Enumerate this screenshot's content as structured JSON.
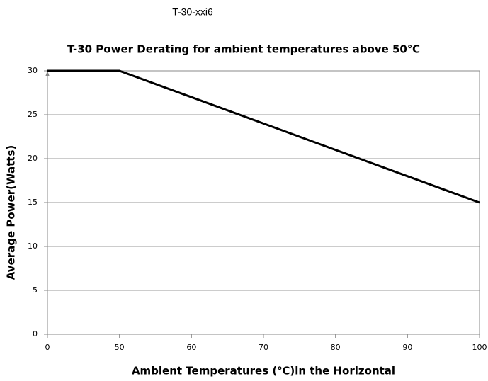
{
  "header": "T-30-xxi6",
  "chart_data": {
    "type": "line",
    "title": "T-30 Power Derating for ambient temperatures above 50℃",
    "x_label": "Ambient Temperatures (℃)in the Horizontal",
    "y_label": "Average Power(Watts)",
    "categories": [
      "0",
      "50",
      "60",
      "70",
      "80",
      "90",
      "100"
    ],
    "values": [
      30,
      30,
      27,
      24,
      21,
      18,
      15
    ],
    "color": "#000000",
    "ylim": [
      0,
      30
    ],
    "yticks": [
      0,
      5,
      10,
      15,
      20,
      25,
      30
    ],
    "grid": true
  }
}
